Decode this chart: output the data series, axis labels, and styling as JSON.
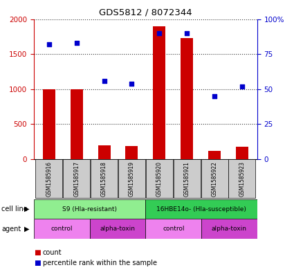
{
  "title": "GDS5812 / 8072344",
  "samples": [
    "GSM1585916",
    "GSM1585917",
    "GSM1585918",
    "GSM1585919",
    "GSM1585920",
    "GSM1585921",
    "GSM1585922",
    "GSM1585923"
  ],
  "counts": [
    1000,
    1000,
    200,
    185,
    1900,
    1730,
    120,
    175
  ],
  "percentiles": [
    82,
    83,
    56,
    54,
    90,
    90,
    45,
    52
  ],
  "ylim_left": [
    0,
    2000
  ],
  "ylim_right": [
    0,
    100
  ],
  "yticks_left": [
    0,
    500,
    1000,
    1500,
    2000
  ],
  "yticks_right": [
    0,
    25,
    50,
    75,
    100
  ],
  "bar_color": "#cc0000",
  "dot_color": "#0000cc",
  "cell_line_groups": [
    {
      "label": "S9 (Hla-resistant)",
      "start": 0,
      "end": 4,
      "color": "#90ee90"
    },
    {
      "label": "16HBE14o- (Hla-susceptible)",
      "start": 4,
      "end": 8,
      "color": "#33cc55"
    }
  ],
  "agent_groups": [
    {
      "label": "control",
      "start": 0,
      "end": 2,
      "color": "#ee82ee"
    },
    {
      "label": "alpha-toxin",
      "start": 2,
      "end": 4,
      "color": "#cc44cc"
    },
    {
      "label": "control",
      "start": 4,
      "end": 6,
      "color": "#ee82ee"
    },
    {
      "label": "alpha-toxin",
      "start": 6,
      "end": 8,
      "color": "#cc44cc"
    }
  ],
  "sample_box_color": "#cccccc",
  "legend_count_color": "#cc0000",
  "legend_dot_color": "#0000cc",
  "cell_line_row_label": "cell line",
  "agent_row_label": "agent",
  "background_color": "#ffffff"
}
